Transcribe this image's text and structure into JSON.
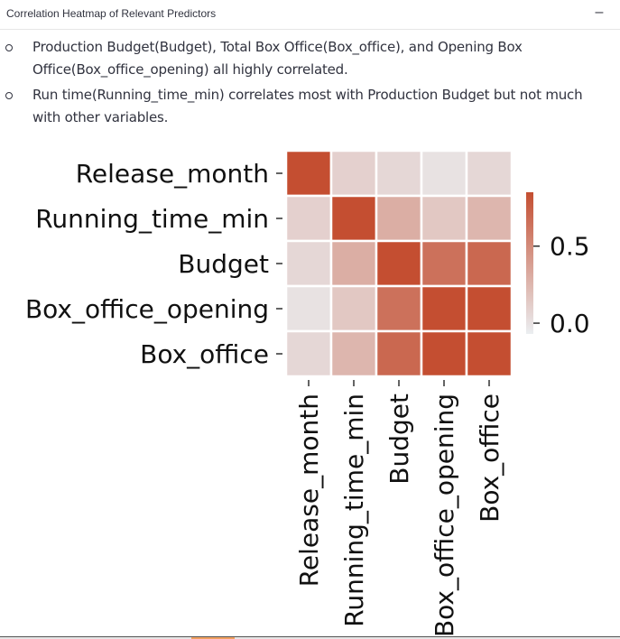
{
  "header": {
    "title": "Correlation Heatmap of Relevant Predictors",
    "collapse_label": "–"
  },
  "bullets": [
    "Production Budget(Budget), Total Box Office(Box_office), and Opening Box Office(Box_office_opening) all highly correlated.",
    "Run time(Running_time_min) correlates most with Production Budget but not much with other variables."
  ],
  "chart_data": {
    "type": "heatmap",
    "title": "",
    "rows": [
      "Release_month",
      "Running_time_min",
      "Budget",
      "Box_office_opening",
      "Box_office"
    ],
    "columns": [
      "Release_month",
      "Running_time_min",
      "Budget",
      "Box_office_opening",
      "Box_office"
    ],
    "values": [
      [
        1.0,
        0.1,
        0.06,
        0.0,
        0.06
      ],
      [
        0.1,
        1.0,
        0.3,
        0.15,
        0.25
      ],
      [
        0.06,
        0.3,
        1.0,
        0.65,
        0.7
      ],
      [
        0.0,
        0.15,
        0.65,
        1.0,
        0.85
      ],
      [
        0.06,
        0.25,
        0.7,
        0.85,
        1.0
      ]
    ],
    "colorbar": {
      "ticks": [
        0.0,
        0.5
      ],
      "tick_labels": [
        "0.0",
        "0.5"
      ],
      "min": -0.07,
      "max": 0.85
    },
    "colors": {
      "low": "#ebeef1",
      "high": "#c44e31"
    }
  }
}
